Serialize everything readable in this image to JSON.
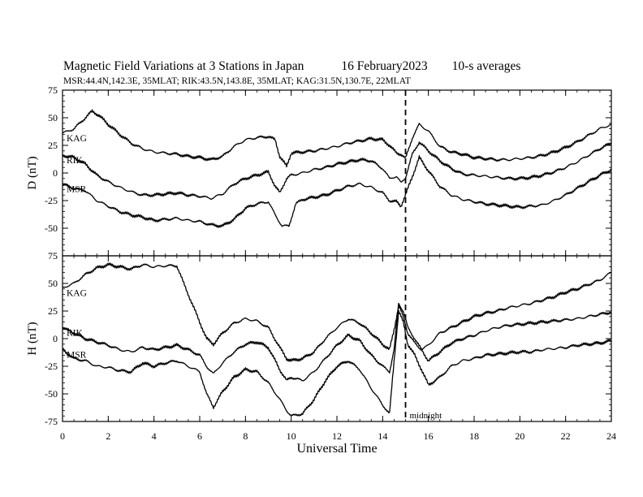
{
  "header": {
    "title": "Magnetic Field Variations at 3 Stations in Japan",
    "date": "16 February2023",
    "averaging": "10-s averages",
    "stations_line": "MSR:44.4N,142.3E, 35MLAT;  RIK:43.5N,143.8E, 35MLAT;  KAG:31.5N,130.7E, 22MLAT"
  },
  "chart_data": [
    {
      "type": "line",
      "panel": "top",
      "ylabel": "D (nT)",
      "ylim": [
        -75,
        75
      ],
      "yticks": [
        75,
        50,
        25,
        0,
        -25,
        -50
      ],
      "xlim": [
        0,
        24
      ],
      "annotation": {
        "x": 15,
        "style": "dashed"
      },
      "series": [
        {
          "name": "KAG",
          "x": [
            0,
            0.5,
            1,
            1.3,
            1.6,
            2,
            2.5,
            3,
            3.5,
            4,
            4.5,
            5,
            5.5,
            6,
            6.5,
            7,
            7.5,
            8,
            8.5,
            9,
            9.3,
            9.5,
            9.8,
            10,
            10.5,
            11,
            11.5,
            12,
            12.5,
            13,
            13.5,
            14,
            14.3,
            14.6,
            14.8,
            15,
            15.3,
            15.6,
            16,
            16.5,
            17,
            17.5,
            18,
            18.5,
            19,
            19.5,
            20,
            20.5,
            21,
            21.5,
            22,
            22.5,
            23,
            23.5,
            24
          ],
          "y": [
            36,
            40,
            50,
            56,
            52,
            44,
            35,
            27,
            22,
            19,
            18,
            17,
            15,
            14,
            12,
            15,
            24,
            30,
            32,
            33,
            30,
            15,
            6,
            18,
            19,
            20,
            22,
            24,
            27,
            29,
            31,
            30,
            25,
            18,
            17,
            13,
            32,
            44,
            38,
            24,
            19,
            17,
            14,
            13,
            12,
            12,
            13,
            14,
            16,
            19,
            23,
            28,
            34,
            40,
            44
          ]
        },
        {
          "name": "RIK",
          "x": [
            0,
            0.5,
            1,
            1.5,
            2,
            2.5,
            3,
            3.5,
            4,
            4.5,
            5,
            5.5,
            6,
            6.5,
            7,
            7.5,
            8,
            8.5,
            9,
            9.3,
            9.5,
            9.8,
            10,
            10.5,
            11,
            11.5,
            12,
            12.5,
            13,
            13.5,
            14,
            14.3,
            14.6,
            14.8,
            15,
            15.3,
            15.6,
            16,
            16.5,
            17,
            17.5,
            18,
            18.5,
            19,
            19.5,
            20,
            20.5,
            21,
            21.5,
            22,
            22.5,
            23,
            23.5,
            24
          ],
          "y": [
            16,
            14,
            8,
            -2,
            -8,
            -13,
            -17,
            -20,
            -20,
            -19,
            -18,
            -20,
            -21,
            -23,
            -19,
            -10,
            -5,
            -2,
            1,
            -12,
            -18,
            -5,
            -2,
            0,
            3,
            5,
            8,
            10,
            12,
            11,
            4,
            -5,
            -3,
            -9,
            -4,
            17,
            28,
            20,
            11,
            4,
            -1,
            -2,
            -3,
            -4,
            -5,
            -5,
            -4,
            -2,
            1,
            5,
            10,
            16,
            22,
            27
          ]
        },
        {
          "name": "MSR",
          "x": [
            0,
            0.5,
            1,
            1.5,
            2,
            2.5,
            3,
            3.5,
            4,
            4.5,
            5,
            5.5,
            6,
            6.5,
            7,
            7.5,
            8,
            8.5,
            9,
            9.3,
            9.6,
            9.9,
            10.2,
            10.5,
            11,
            11.5,
            12,
            12.5,
            13,
            13.5,
            14,
            14.3,
            14.6,
            14.8,
            15,
            15.3,
            15.6,
            16,
            16.5,
            17,
            17.5,
            18,
            18.5,
            19,
            19.5,
            20,
            20.5,
            21,
            21.5,
            22,
            22.5,
            23,
            23.5,
            24
          ],
          "y": [
            -10,
            -14,
            -16,
            -25,
            -30,
            -35,
            -38,
            -40,
            -43,
            -42,
            -41,
            -43,
            -44,
            -47,
            -48,
            -42,
            -32,
            -28,
            -26,
            -38,
            -48,
            -48,
            -28,
            -24,
            -22,
            -20,
            -16,
            -12,
            -10,
            -13,
            -18,
            -25,
            -26,
            -30,
            -20,
            -3,
            14,
            2,
            -12,
            -20,
            -24,
            -26,
            -28,
            -29,
            -30,
            -31,
            -30,
            -29,
            -25,
            -20,
            -14,
            -8,
            -2,
            3
          ]
        }
      ]
    },
    {
      "type": "line",
      "panel": "bottom",
      "ylabel": "H (nT)",
      "xlabel": "Universal Time",
      "ylim": [
        -75,
        75
      ],
      "yticks": [
        75,
        50,
        25,
        0,
        -25,
        -50,
        -75
      ],
      "xlim": [
        0,
        24
      ],
      "xticks": [
        0,
        2,
        4,
        6,
        8,
        10,
        12,
        14,
        16,
        18,
        20,
        22,
        24
      ],
      "annotation": {
        "x": 15,
        "style": "dashed",
        "label": "midnight"
      },
      "series": [
        {
          "name": "KAG",
          "x": [
            0,
            0.5,
            1,
            1.5,
            2,
            2.5,
            3,
            3.5,
            4,
            4.5,
            5,
            5.3,
            5.6,
            6,
            6.3,
            6.6,
            7,
            7.5,
            8,
            8.5,
            9,
            9.5,
            9.8,
            10,
            10.5,
            11,
            11.5,
            12,
            12.5,
            13,
            13.5,
            14,
            14.3,
            14.5,
            14.7,
            14.9,
            15.1,
            15.4,
            15.7,
            16,
            16.5,
            17,
            17.5,
            18,
            18.5,
            19,
            19.5,
            20,
            20.5,
            21,
            21.5,
            22,
            22.5,
            23,
            23.5,
            24
          ],
          "y": [
            46,
            50,
            58,
            64,
            67,
            65,
            63,
            67,
            65,
            66,
            66,
            50,
            35,
            15,
            0,
            -5,
            5,
            14,
            18,
            16,
            10,
            -8,
            -18,
            -20,
            -18,
            -12,
            0,
            10,
            18,
            14,
            5,
            -5,
            -10,
            8,
            30,
            20,
            5,
            -4,
            -10,
            -6,
            5,
            10,
            15,
            20,
            23,
            25,
            28,
            30,
            32,
            35,
            38,
            42,
            45,
            49,
            53,
            60
          ]
        },
        {
          "name": "RIK",
          "x": [
            0,
            0.5,
            1,
            1.5,
            2,
            2.5,
            3,
            3.5,
            4,
            4.5,
            5,
            5.5,
            6,
            6.3,
            6.6,
            7,
            7.5,
            8,
            8.5,
            9,
            9.5,
            9.8,
            10,
            10.5,
            11,
            11.5,
            12,
            12.5,
            13,
            13.5,
            14,
            14.3,
            14.5,
            14.7,
            14.9,
            15.1,
            15.4,
            15.7,
            16,
            16.5,
            17,
            17.5,
            18,
            18.5,
            19,
            19.5,
            20,
            20.5,
            21,
            21.5,
            22,
            22.5,
            23,
            23.5,
            24
          ],
          "y": [
            10,
            5,
            0,
            -3,
            -6,
            -10,
            -12,
            -8,
            -10,
            -8,
            -6,
            -10,
            -15,
            -25,
            -32,
            -22,
            -12,
            -5,
            -3,
            -8,
            -28,
            -38,
            -35,
            -38,
            -30,
            -18,
            -6,
            3,
            -2,
            -15,
            -25,
            -30,
            -10,
            32,
            25,
            10,
            0,
            -10,
            -20,
            -12,
            -4,
            0,
            3,
            7,
            10,
            12,
            13,
            14,
            15,
            16,
            17,
            18,
            20,
            22,
            24
          ]
        },
        {
          "name": "MSR",
          "x": [
            0,
            0.5,
            1,
            1.5,
            2,
            2.5,
            3,
            3.5,
            4,
            4.5,
            5,
            5.5,
            6,
            6.3,
            6.6,
            7,
            7.5,
            8,
            8.5,
            9,
            9.5,
            9.8,
            10,
            10.5,
            11,
            11.5,
            12,
            12.5,
            13,
            13.5,
            14,
            14.3,
            14.5,
            14.7,
            14.9,
            15.1,
            15.4,
            15.7,
            16,
            16.5,
            17,
            17.5,
            18,
            18.5,
            19,
            19.5,
            20,
            20.5,
            21,
            21.5,
            22,
            22.5,
            23,
            23.5,
            24
          ],
          "y": [
            -10,
            -18,
            -20,
            -25,
            -26,
            -29,
            -30,
            -22,
            -25,
            -22,
            -20,
            -25,
            -30,
            -50,
            -62,
            -48,
            -35,
            -28,
            -30,
            -40,
            -55,
            -65,
            -70,
            -68,
            -55,
            -38,
            -25,
            -20,
            -28,
            -45,
            -60,
            -68,
            -20,
            25,
            15,
            -5,
            -15,
            -28,
            -42,
            -35,
            -25,
            -20,
            -18,
            -15,
            -14,
            -13,
            -12,
            -12,
            -10,
            -9,
            -8,
            -6,
            -5,
            -4,
            -2
          ]
        }
      ]
    }
  ]
}
